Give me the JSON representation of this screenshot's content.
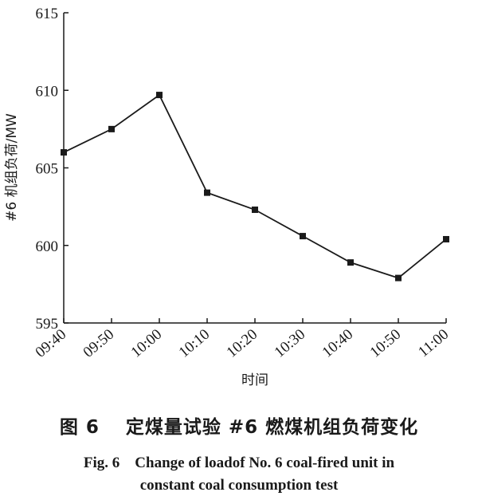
{
  "chart_data": {
    "type": "line",
    "xlabel": "时间",
    "ylabel": "#6 机组负荷/MW",
    "categories": [
      "09:40",
      "09:50",
      "10:00",
      "10:10",
      "10:20",
      "10:30",
      "10:40",
      "10:50",
      "11:00"
    ],
    "series": [
      {
        "values": [
          606.0,
          607.5,
          609.7,
          603.4,
          602.3,
          600.6,
          598.9,
          597.9,
          600.4
        ]
      }
    ],
    "ylim": [
      595,
      615
    ],
    "yticks": [
      595,
      600,
      605,
      610,
      615
    ],
    "grid": false,
    "marker": "square",
    "colors": {
      "line": "#1a1a1a",
      "marker": "#1a1a1a"
    }
  },
  "caption": {
    "zh": "图 6　 定煤量试验 #6 燃煤机组负荷变化",
    "en_line1": "Fig. 6　Change of loadof No. 6 coal-fired unit in",
    "en_line2": "constant coal consumption test"
  }
}
